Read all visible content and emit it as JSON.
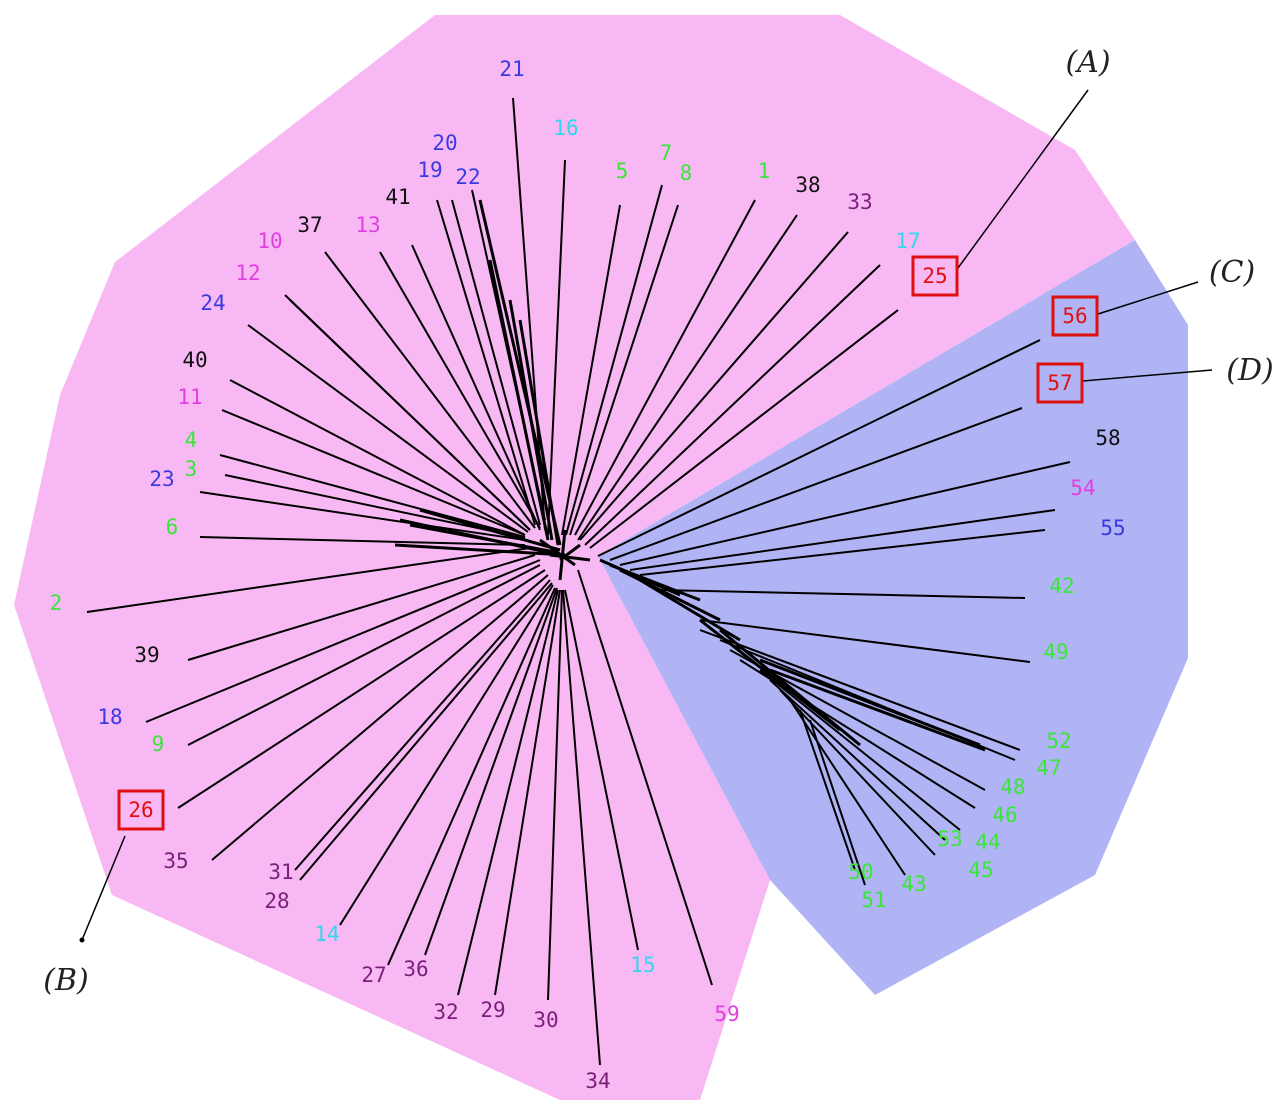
{
  "colors": {
    "region_a": "#f8b8f4",
    "region_b": "#b0b4f4",
    "edge": "#000000",
    "highlight": "#e01010",
    "green": "#39e639",
    "blue": "#3a3ae0",
    "cyan": "#33d7ec",
    "magenta": "#e23fe2",
    "purple": "#7a1f7a",
    "black": "#111111",
    "red": "#e01010"
  },
  "leaves": [
    {
      "id": "21",
      "color": "blue"
    },
    {
      "id": "16",
      "color": "cyan"
    },
    {
      "id": "20",
      "color": "blue"
    },
    {
      "id": "19",
      "color": "blue"
    },
    {
      "id": "22",
      "color": "blue"
    },
    {
      "id": "5",
      "color": "green"
    },
    {
      "id": "7",
      "color": "green"
    },
    {
      "id": "8",
      "color": "green"
    },
    {
      "id": "1",
      "color": "green"
    },
    {
      "id": "38",
      "color": "black"
    },
    {
      "id": "33",
      "color": "purple"
    },
    {
      "id": "41",
      "color": "black"
    },
    {
      "id": "37",
      "color": "black"
    },
    {
      "id": "13",
      "color": "magenta"
    },
    {
      "id": "10",
      "color": "magenta"
    },
    {
      "id": "12",
      "color": "magenta"
    },
    {
      "id": "24",
      "color": "blue"
    },
    {
      "id": "17",
      "color": "cyan"
    },
    {
      "id": "25",
      "color": "red",
      "highlight": true
    },
    {
      "id": "56",
      "color": "red",
      "highlight": true
    },
    {
      "id": "57",
      "color": "red",
      "highlight": true
    },
    {
      "id": "58",
      "color": "black"
    },
    {
      "id": "54",
      "color": "magenta"
    },
    {
      "id": "55",
      "color": "blue"
    },
    {
      "id": "42",
      "color": "green"
    },
    {
      "id": "49",
      "color": "green"
    },
    {
      "id": "52",
      "color": "green"
    },
    {
      "id": "47",
      "color": "green"
    },
    {
      "id": "48",
      "color": "green"
    },
    {
      "id": "46",
      "color": "green"
    },
    {
      "id": "44",
      "color": "green"
    },
    {
      "id": "53",
      "color": "green"
    },
    {
      "id": "45",
      "color": "green"
    },
    {
      "id": "43",
      "color": "green"
    },
    {
      "id": "50",
      "color": "green"
    },
    {
      "id": "51",
      "color": "green"
    },
    {
      "id": "40",
      "color": "black"
    },
    {
      "id": "11",
      "color": "magenta"
    },
    {
      "id": "4",
      "color": "green"
    },
    {
      "id": "3",
      "color": "green"
    },
    {
      "id": "23",
      "color": "blue"
    },
    {
      "id": "6",
      "color": "green"
    },
    {
      "id": "2",
      "color": "green"
    },
    {
      "id": "39",
      "color": "black"
    },
    {
      "id": "18",
      "color": "blue"
    },
    {
      "id": "9",
      "color": "green"
    },
    {
      "id": "26",
      "color": "red",
      "highlight": true
    },
    {
      "id": "35",
      "color": "purple"
    },
    {
      "id": "31",
      "color": "purple"
    },
    {
      "id": "28",
      "color": "purple"
    },
    {
      "id": "14",
      "color": "cyan"
    },
    {
      "id": "27",
      "color": "purple"
    },
    {
      "id": "36",
      "color": "purple"
    },
    {
      "id": "32",
      "color": "purple"
    },
    {
      "id": "29",
      "color": "purple"
    },
    {
      "id": "30",
      "color": "purple"
    },
    {
      "id": "34",
      "color": "purple"
    },
    {
      "id": "15",
      "color": "cyan"
    },
    {
      "id": "59",
      "color": "magenta"
    }
  ],
  "annotations": [
    {
      "label": "(A)",
      "target": "25"
    },
    {
      "label": "(B)",
      "target": "26"
    },
    {
      "label": "(C)",
      "target": "56"
    },
    {
      "label": "(D)",
      "target": "57"
    }
  ]
}
